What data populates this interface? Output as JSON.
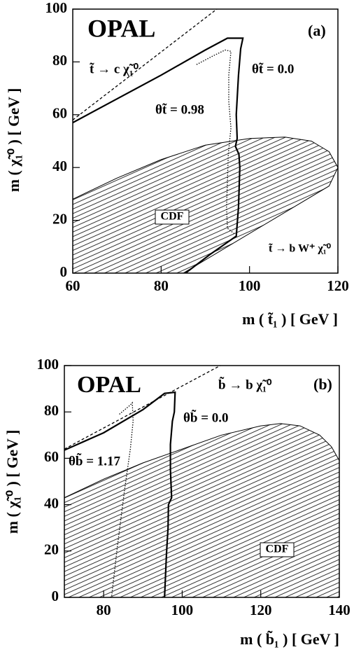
{
  "chart_data": [
    {
      "type": "line",
      "panel": "(a)",
      "x_label": "m ( t̃₁ ) [ GeV ]",
      "y_label": "m ( χ̃₁⁰ ) [ GeV ]",
      "xlim": [
        60,
        120
      ],
      "ylim": [
        0,
        100
      ],
      "xticks": [
        60,
        80,
        100,
        120
      ],
      "yticks": [
        0,
        20,
        40,
        60,
        80,
        100
      ],
      "annotations": [
        "OPAL",
        "t̃ → c χ̃₁⁰",
        "t̃ → b W⁺ χ̃₁⁰"
      ],
      "series": [
        {
          "name": "CDF",
          "color": "#000000",
          "fill": "hatch",
          "x": [
            60,
            60,
            70,
            80,
            90,
            100,
            108,
            114,
            116,
            118,
            120,
            118,
            85
          ],
          "values": [
            0,
            28,
            36,
            43,
            48.5,
            51,
            51.5,
            50,
            48,
            46,
            40,
            33,
            0
          ]
        },
        {
          "color": "#000000",
          "dash": "dashed",
          "x": [
            60,
            92.6
          ],
          "values": [
            58,
            100
          ]
        },
        {
          "name": "θt̃ = 0.0",
          "color": "#000000",
          "dash": "solid",
          "x": [
            60,
            70,
            80,
            90,
            95,
            98.5,
            98,
            97.5,
            97,
            97.2,
            96.8,
            97.6,
            97.8,
            97.5,
            97,
            91,
            85.5
          ],
          "values": [
            57,
            66,
            75,
            84.5,
            89,
            89,
            85,
            75,
            60,
            51,
            48,
            45,
            40,
            25,
            14,
            7,
            0
          ]
        },
        {
          "name": "θt̃ = 0.98",
          "color": "#000000",
          "dash": "dotted",
          "x": [
            88,
            92,
            94.5,
            95.8,
            95.3,
            95.3,
            95.8,
            95.2,
            95,
            94.8,
            95,
            96.5
          ],
          "values": [
            79,
            82.5,
            84.5,
            84,
            75,
            65,
            55,
            45,
            35,
            25,
            17,
            15
          ]
        }
      ]
    },
    {
      "type": "line",
      "panel": "(b)",
      "x_label": "m ( b̃₁ ) [ GeV ]",
      "y_label": "m ( χ̃₁⁰ ) [ GeV ]",
      "xlim": [
        70,
        140
      ],
      "ylim": [
        0,
        100
      ],
      "xticks": [
        80,
        100,
        120,
        140
      ],
      "yticks": [
        0,
        20,
        40,
        60,
        80,
        100
      ],
      "annotations": [
        "OPAL",
        "b̃ → b χ̃₁⁰"
      ],
      "series": [
        {
          "name": "CDF",
          "color": "#000000",
          "fill": "hatch",
          "x": [
            70,
            70,
            80,
            90,
            100,
            110,
            120,
            125,
            130,
            135,
            138,
            140,
            140
          ],
          "values": [
            0,
            43,
            51,
            58,
            64,
            70,
            74,
            75,
            74,
            70,
            65,
            59,
            0
          ]
        },
        {
          "color": "#000000",
          "dash": "dashed",
          "x": [
            70,
            109.7
          ],
          "values": [
            64,
            100
          ]
        },
        {
          "name": "θb̃ = 0.0",
          "color": "#000000",
          "dash": "solid",
          "x": [
            70,
            80,
            90,
            95.5,
            98.2,
            98,
            97.5,
            97,
            97,
            97.3,
            96.5,
            96.4,
            96,
            95.5
          ],
          "values": [
            63.5,
            71,
            81,
            88,
            88.5,
            80,
            76,
            66,
            55,
            43,
            40,
            30,
            19,
            0
          ]
        },
        {
          "name": "θb̃ = 1.17",
          "color": "#000000",
          "dash": "dotted",
          "x": [
            84,
            86.8,
            87.3,
            87.5,
            86.8,
            85.3,
            83.5,
            82
          ],
          "values": [
            79,
            83,
            84,
            76,
            64,
            46,
            22,
            0
          ]
        }
      ]
    }
  ]
}
